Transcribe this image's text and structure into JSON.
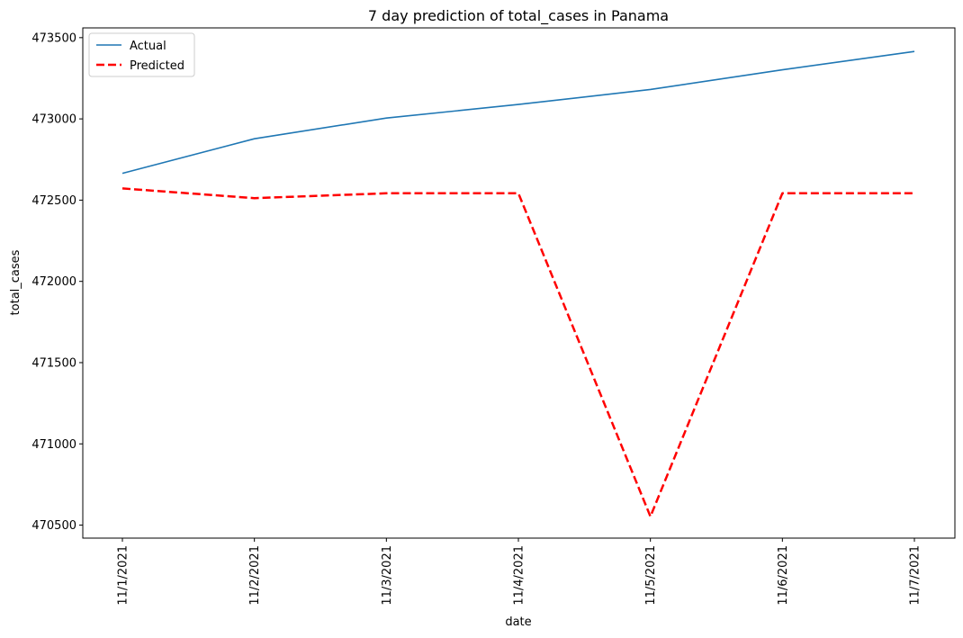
{
  "chart_data": {
    "type": "line",
    "title": "7 day prediction of total_cases in Panama",
    "xlabel": "date",
    "ylabel": "total_cases",
    "categories": [
      "11/1/2021",
      "11/2/2021",
      "11/3/2021",
      "11/4/2021",
      "11/5/2021",
      "11/6/2021",
      "11/7/2021"
    ],
    "yticks": [
      470500,
      471000,
      471500,
      472000,
      472500,
      473000,
      473500
    ],
    "ylim": [
      470420,
      473560
    ],
    "legend_position": "top-left",
    "grid": false,
    "series": [
      {
        "name": "Actual",
        "color": "#1f77b4",
        "style": "solid",
        "values": [
          472665,
          472878,
          473005,
          473089,
          473181,
          473302,
          473415
        ]
      },
      {
        "name": "Predicted",
        "color": "#ff0000",
        "style": "dashed",
        "values": [
          472572,
          472512,
          472542,
          472542,
          470553,
          472542,
          472542
        ]
      }
    ]
  }
}
